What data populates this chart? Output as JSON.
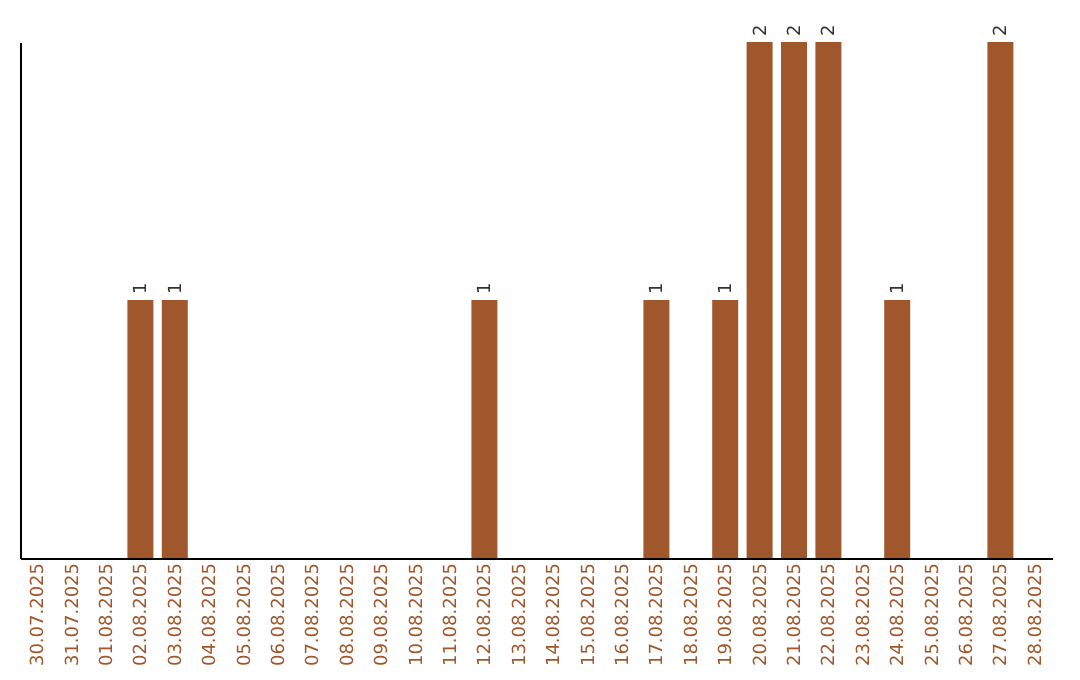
{
  "chart_data": {
    "type": "bar",
    "categories": [
      "30.07.2025",
      "31.07.2025",
      "01.08.2025",
      "02.08.2025",
      "03.08.2025",
      "04.08.2025",
      "05.08.2025",
      "06.08.2025",
      "07.08.2025",
      "08.08.2025",
      "09.08.2025",
      "10.08.2025",
      "11.08.2025",
      "12.08.2025",
      "13.08.2025",
      "14.08.2025",
      "15.08.2025",
      "16.08.2025",
      "17.08.2025",
      "18.08.2025",
      "19.08.2025",
      "20.08.2025",
      "21.08.2025",
      "22.08.2025",
      "23.08.2025",
      "24.08.2025",
      "25.08.2025",
      "26.08.2025",
      "27.08.2025",
      "28.08.2025"
    ],
    "values": [
      0,
      0,
      0,
      1,
      1,
      0,
      0,
      0,
      0,
      0,
      0,
      0,
      0,
      1,
      0,
      0,
      0,
      0,
      1,
      0,
      1,
      2,
      2,
      2,
      0,
      1,
      0,
      0,
      2,
      0
    ],
    "value_labels": [
      null,
      null,
      null,
      "1",
      "1",
      null,
      null,
      null,
      null,
      null,
      null,
      null,
      null,
      "1",
      null,
      null,
      null,
      null,
      "1",
      null,
      "1",
      "2",
      "2",
      "2",
      null,
      "1",
      null,
      null,
      "2",
      null
    ],
    "color": "#a0572b",
    "ylim": [
      0,
      2
    ],
    "grid": false,
    "tick_labels": "x"
  }
}
